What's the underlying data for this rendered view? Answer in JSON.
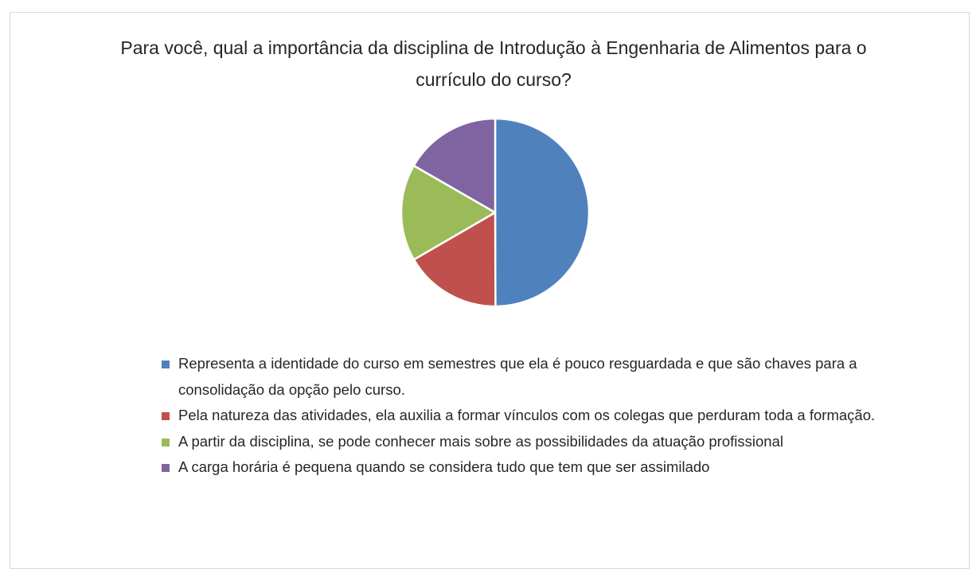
{
  "chart_data": {
    "type": "pie",
    "title": "Para você, qual a importância da disciplina de Introdução à Engenharia de Alimentos para o currículo do curso?",
    "categories": [
      "Representa a identidade do curso em semestres que ela é pouco resguardada e que são chaves para a consolidação da opção pelo curso.",
      "Pela natureza das atividades, ela auxilia a formar vínculos com os colegas que perduram toda a formação.",
      "A partir da disciplina, se pode conhecer mais sobre as possibilidades da atuação profissional",
      "A carga horária é pequena quando se considera tudo que tem que ser assimilado"
    ],
    "values": [
      50,
      16.7,
      16.7,
      16.7
    ],
    "colors": [
      "#4f81bd",
      "#c0504d",
      "#9bbb59",
      "#8064a2"
    ],
    "legend": "bottom"
  }
}
